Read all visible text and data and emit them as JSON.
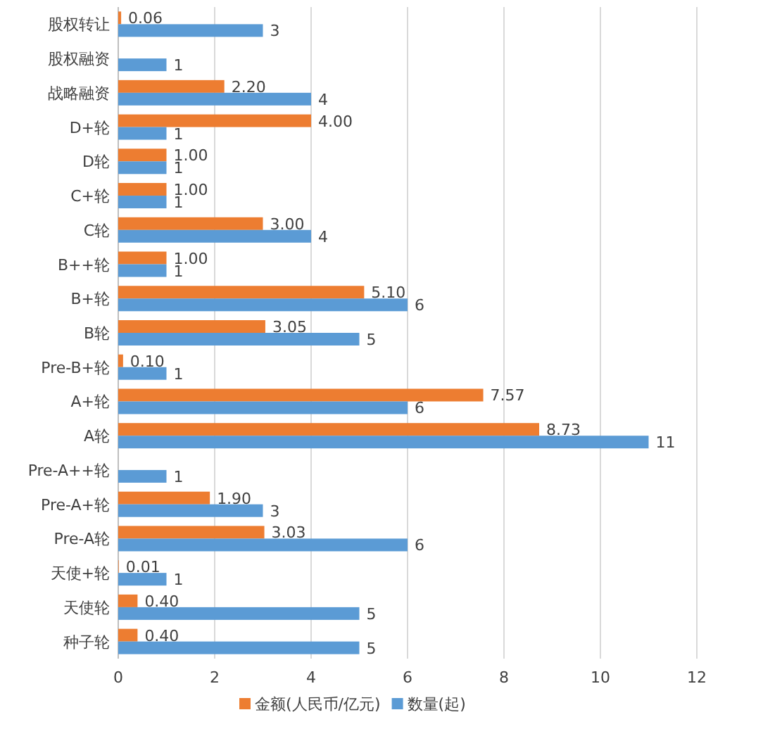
{
  "chart_data": {
    "type": "bar",
    "orientation": "horizontal",
    "categories": [
      "股权转让",
      "股权融资",
      "战略融资",
      "D+轮",
      "D轮",
      "C+轮",
      "C轮",
      "B++轮",
      "B+轮",
      "B轮",
      "Pre-B+轮",
      "A+轮",
      "A轮",
      "Pre-A++轮",
      "Pre-A+轮",
      "Pre-A轮",
      "天使+轮",
      "天使轮",
      "种子轮"
    ],
    "series": [
      {
        "name": "金额(人民币/亿元)",
        "color": "#ed7d31",
        "values": [
          0.06,
          null,
          2.2,
          4.0,
          1.0,
          1.0,
          3.0,
          1.0,
          5.1,
          3.05,
          0.1,
          7.57,
          8.73,
          null,
          1.9,
          3.03,
          0.01,
          0.4,
          0.4
        ],
        "value_labels": [
          "0.06",
          null,
          "2.20",
          "4.00",
          "1.00",
          "1.00",
          "3.00",
          "1.00",
          "5.10",
          "3.05",
          "0.10",
          "7.57",
          "8.73",
          null,
          "1.90",
          "3.03",
          "0.01",
          "0.40",
          "0.40"
        ]
      },
      {
        "name": "数量(起)",
        "color": "#5b9bd5",
        "values": [
          3,
          1,
          4,
          1,
          1,
          1,
          4,
          1,
          6,
          5,
          1,
          6,
          11,
          1,
          3,
          6,
          1,
          5,
          5
        ],
        "value_labels": [
          "3",
          "1",
          "4",
          "1",
          "1",
          "1",
          "4",
          "1",
          "6",
          "5",
          "1",
          "6",
          "11",
          "1",
          "3",
          "6",
          "1",
          "5",
          "5"
        ]
      }
    ],
    "xlim": [
      0,
      12
    ],
    "xticks": [
      0,
      2,
      4,
      6,
      8,
      10,
      12
    ],
    "grid": "x",
    "legend": "bottom"
  }
}
